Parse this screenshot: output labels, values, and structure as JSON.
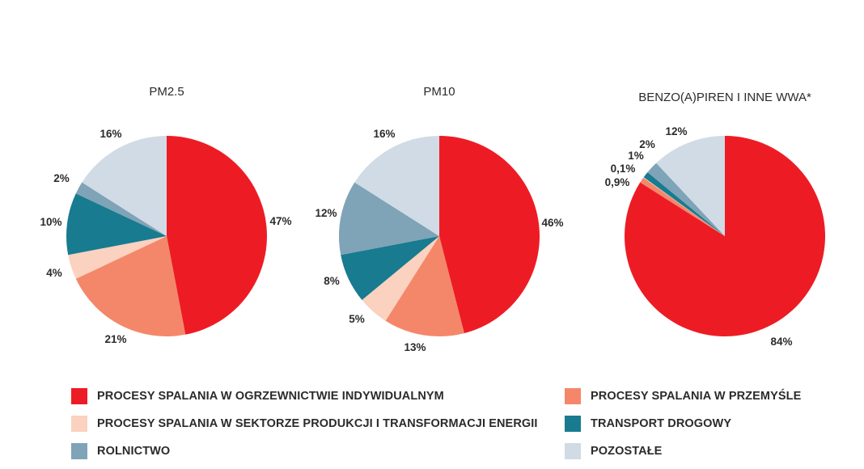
{
  "colors": {
    "ogrzewnictwo": "#ed1c24",
    "przemysl": "#f4876a",
    "energia": "#fbd1bf",
    "transport": "#187b8f",
    "rolnictwo": "#7fa3b7",
    "pozostale": "#d0dbe5"
  },
  "legend": [
    {
      "key": "ogrzewnictwo",
      "label": "PROCESY SPALANIA W OGRZEWNICTWIE INDYWIDUALNYM"
    },
    {
      "key": "przemysl",
      "label": "PROCESY SPALANIA W PRZEMYŚLE"
    },
    {
      "key": "energia",
      "label": "PROCESY SPALANIA W SEKTORZE PRODUKCJI I TRANSFORMACJI ENERGII"
    },
    {
      "key": "transport",
      "label": "TRANSPORT DROGOWY"
    },
    {
      "key": "rolnictwo",
      "label": "ROLNICTWO"
    },
    {
      "key": "pozostale",
      "label": "POZOSTAŁE"
    }
  ],
  "chart_data": [
    {
      "type": "pie",
      "title": "PM2.5",
      "slices": [
        {
          "key": "ogrzewnictwo",
          "value": 47,
          "label": "47%"
        },
        {
          "key": "przemysl",
          "value": 21,
          "label": "21%"
        },
        {
          "key": "energia",
          "value": 4,
          "label": "4%"
        },
        {
          "key": "transport",
          "value": 10,
          "label": "10%"
        },
        {
          "key": "rolnictwo",
          "value": 2,
          "label": "2%"
        },
        {
          "key": "pozostale",
          "value": 16,
          "label": "16%"
        }
      ]
    },
    {
      "type": "pie",
      "title": "PM10",
      "slices": [
        {
          "key": "ogrzewnictwo",
          "value": 46,
          "label": "46%"
        },
        {
          "key": "przemysl",
          "value": 13,
          "label": "13%"
        },
        {
          "key": "energia",
          "value": 5,
          "label": "5%"
        },
        {
          "key": "transport",
          "value": 8,
          "label": "8%"
        },
        {
          "key": "rolnictwo",
          "value": 12,
          "label": "12%"
        },
        {
          "key": "pozostale",
          "value": 16,
          "label": "16%"
        }
      ]
    },
    {
      "type": "pie",
      "title": "BENZO(A)PIREN I INNE WWA*",
      "slices": [
        {
          "key": "ogrzewnictwo",
          "value": 84,
          "label": "84%"
        },
        {
          "key": "przemysl",
          "value": 0.9,
          "label": "0,9%"
        },
        {
          "key": "energia",
          "value": 0.1,
          "label": "0,1%"
        },
        {
          "key": "transport",
          "value": 1,
          "label": "1%"
        },
        {
          "key": "rolnictwo",
          "value": 2,
          "label": "2%"
        },
        {
          "key": "pozostale",
          "value": 12,
          "label": "12%"
        }
      ]
    }
  ]
}
